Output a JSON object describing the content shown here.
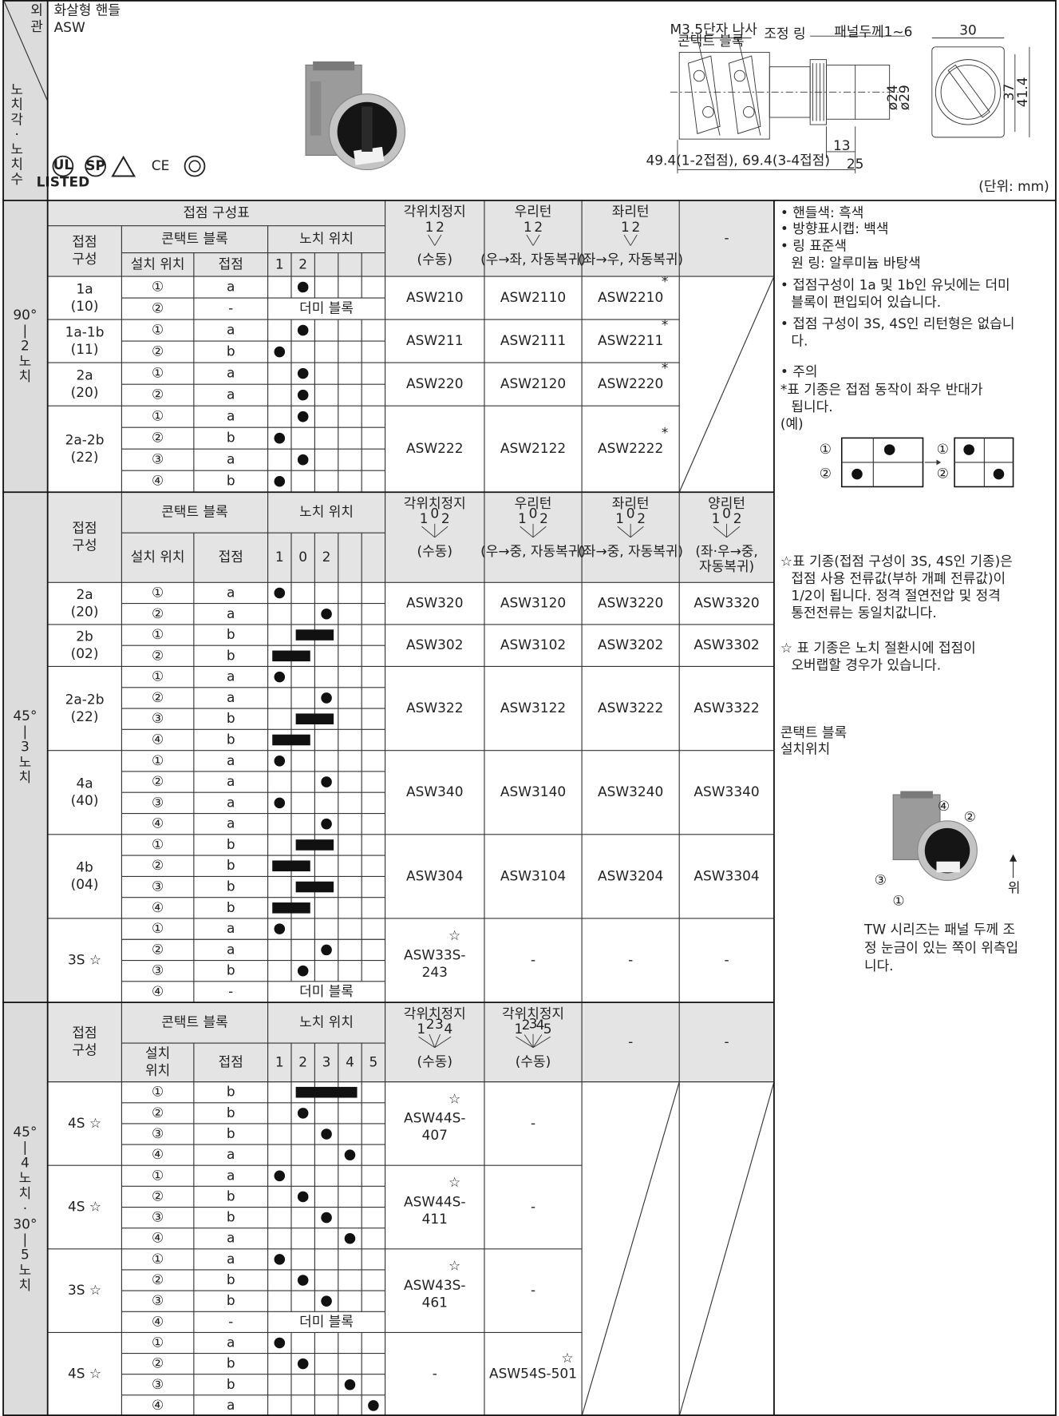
{
  "header": {
    "side_top": [
      "외",
      "관"
    ],
    "side_bottom": [
      "노",
      "치",
      "각",
      "·",
      "노",
      "치",
      "수"
    ],
    "title": "화살형 핸들",
    "model": "ASW",
    "certifications": [
      "UL",
      "LISTED",
      "SP",
      "CE"
    ],
    "drawing_labels": [
      "M3.5단자 나사",
      "콘택트 블록",
      "조정 링",
      "패널두께1~6",
      "30",
      "ø24",
      "ø29",
      "37",
      "41.4",
      "13",
      "25",
      "49.4(1-2접점), 69.4(3-4접점)"
    ],
    "unit": "(단위: mm)"
  },
  "table": {
    "column_heads": {
      "config": [
        "접점",
        "구성"
      ],
      "block": "콘택트 블록",
      "notch": "노치 위치",
      "contact": "접점"
    },
    "sections": [
      {
        "side_label": [
          "90°",
          "|",
          "2",
          "노",
          "치"
        ],
        "title": "접점 구성표",
        "position_head": [
          "설치 위치"
        ],
        "notches": [
          "1",
          "2"
        ],
        "types": [
          {
            "name": "각위치정지",
            "labels": [
              "1",
              "2"
            ],
            "mode": [
              "(수동)"
            ]
          },
          {
            "name": "우리턴",
            "labels": [
              "1",
              "2"
            ],
            "mode": [
              "(우→좌, 자동복귀)"
            ]
          },
          {
            "name": "좌리턴",
            "labels": [
              "1",
              "2"
            ],
            "mode": [
              "(좌→우, 자동복귀)"
            ]
          },
          "-"
        ],
        "groups": [
          {
            "config": [
              "1a",
              "(10)"
            ],
            "rows": [
              {
                "pos": "①",
                "contact": "a",
                "on": [
                  1
                ]
              },
              {
                "pos": "②",
                "contact": "-",
                "dummy": "더미 블록"
              }
            ],
            "models": [
              "ASW210",
              "ASW2110",
              {
                "lines": [
                  "ASW2210"
                ],
                "note": "*"
              },
              null
            ]
          },
          {
            "config": [
              "1a-1b",
              "(11)"
            ],
            "rows": [
              {
                "pos": "①",
                "contact": "a",
                "on": [
                  1
                ]
              },
              {
                "pos": "②",
                "contact": "b",
                "on": [
                  0
                ]
              }
            ],
            "models": [
              "ASW211",
              "ASW2111",
              {
                "lines": [
                  "ASW2211"
                ],
                "note": "*"
              },
              null
            ]
          },
          {
            "config": [
              "2a",
              "(20)"
            ],
            "rows": [
              {
                "pos": "①",
                "contact": "a",
                "on": [
                  1
                ]
              },
              {
                "pos": "②",
                "contact": "a",
                "on": [
                  1
                ]
              }
            ],
            "models": [
              "ASW220",
              "ASW2120",
              {
                "lines": [
                  "ASW2220"
                ],
                "note": "*"
              },
              null
            ]
          },
          {
            "config": [
              "2a-2b",
              "(22)"
            ],
            "rows": [
              {
                "pos": "①",
                "contact": "a",
                "on": [
                  1
                ]
              },
              {
                "pos": "②",
                "contact": "b",
                "on": [
                  0
                ]
              },
              {
                "pos": "③",
                "contact": "a",
                "on": [
                  1
                ]
              },
              {
                "pos": "④",
                "contact": "b",
                "on": [
                  0
                ]
              }
            ],
            "models": [
              "ASW222",
              "ASW2122",
              {
                "lines": [
                  "ASW2222"
                ],
                "note": "*"
              },
              null
            ]
          }
        ]
      },
      {
        "side_label": [
          "45°",
          "|",
          "3",
          "노",
          "치"
        ],
        "position_head": [
          "설치 위치"
        ],
        "notches": [
          "1",
          "0",
          "2"
        ],
        "types": [
          {
            "name": "각위치정지",
            "labels": [
              "1",
              "0",
              "2"
            ],
            "mode": [
              "(수동)"
            ]
          },
          {
            "name": "우리턴",
            "labels": [
              "1",
              "0",
              "2"
            ],
            "mode": [
              "(우→중, 자동복귀)"
            ]
          },
          {
            "name": "좌리턴",
            "labels": [
              "1",
              "0",
              "2"
            ],
            "mode": [
              "(좌→중, 자동복귀)"
            ]
          },
          {
            "name": "양리턴",
            "labels": [
              "1",
              "0",
              "2"
            ],
            "mode": [
              "(좌·우→중,",
              "자동복귀)"
            ]
          }
        ],
        "groups": [
          {
            "config": [
              "2a",
              "(20)"
            ],
            "rows": [
              {
                "pos": "①",
                "contact": "a",
                "on": [
                  0
                ]
              },
              {
                "pos": "②",
                "contact": "a",
                "on": [
                  2
                ]
              }
            ],
            "models": [
              "ASW320",
              "ASW3120",
              "ASW3220",
              "ASW3320"
            ]
          },
          {
            "config": [
              "2b",
              "(02)"
            ],
            "rows": [
              {
                "pos": "①",
                "contact": "b",
                "on": [
                  1,
                  2
                ]
              },
              {
                "pos": "②",
                "contact": "b",
                "on": [
                  0,
                  1
                ]
              }
            ],
            "models": [
              "ASW302",
              "ASW3102",
              "ASW3202",
              "ASW3302"
            ]
          },
          {
            "config": [
              "2a-2b",
              "(22)"
            ],
            "rows": [
              {
                "pos": "①",
                "contact": "a",
                "on": [
                  0
                ]
              },
              {
                "pos": "②",
                "contact": "a",
                "on": [
                  2
                ]
              },
              {
                "pos": "③",
                "contact": "b",
                "on": [
                  1,
                  2
                ]
              },
              {
                "pos": "④",
                "contact": "b",
                "on": [
                  0,
                  1
                ]
              }
            ],
            "models": [
              "ASW322",
              "ASW3122",
              "ASW3222",
              "ASW3322"
            ]
          },
          {
            "config": [
              "4a",
              "(40)"
            ],
            "rows": [
              {
                "pos": "①",
                "contact": "a",
                "on": [
                  0
                ]
              },
              {
                "pos": "②",
                "contact": "a",
                "on": [
                  2
                ]
              },
              {
                "pos": "③",
                "contact": "a",
                "on": [
                  0
                ]
              },
              {
                "pos": "④",
                "contact": "a",
                "on": [
                  2
                ]
              }
            ],
            "models": [
              "ASW340",
              "ASW3140",
              "ASW3240",
              "ASW3340"
            ]
          },
          {
            "config": [
              "4b",
              "(04)"
            ],
            "rows": [
              {
                "pos": "①",
                "contact": "b",
                "on": [
                  1,
                  2
                ]
              },
              {
                "pos": "②",
                "contact": "b",
                "on": [
                  0,
                  1
                ]
              },
              {
                "pos": "③",
                "contact": "b",
                "on": [
                  1,
                  2
                ]
              },
              {
                "pos": "④",
                "contact": "b",
                "on": [
                  0,
                  1
                ]
              }
            ],
            "models": [
              "ASW304",
              "ASW3104",
              "ASW3204",
              "ASW3304"
            ]
          },
          {
            "config": [
              "3S ☆"
            ],
            "rows": [
              {
                "pos": "①",
                "contact": "a",
                "on": [
                  0
                ]
              },
              {
                "pos": "②",
                "contact": "a",
                "on": [
                  2
                ]
              },
              {
                "pos": "③",
                "contact": "b",
                "on": [
                  1
                ]
              },
              {
                "pos": "④",
                "contact": "-",
                "dummy": "더미 블록"
              }
            ],
            "models": [
              {
                "lines": [
                  "ASW33S-",
                  "243"
                ],
                "note": "☆"
              },
              "-",
              "-",
              "-"
            ]
          }
        ]
      },
      {
        "side_label": [
          "45°",
          "|",
          "4",
          "노",
          "치",
          "·",
          "30°",
          "|",
          "5",
          "노",
          "치"
        ],
        "position_head": [
          "설치",
          "위치"
        ],
        "notches": [
          "1",
          "2",
          "3",
          "4",
          "5"
        ],
        "types": [
          {
            "name": "각위치정지",
            "labels": [
              "1",
              "2",
              "3",
              "4"
            ],
            "mode": [
              "(수동)"
            ]
          },
          {
            "name": "각위치정지",
            "labels": [
              "1",
              "2",
              "3",
              "4",
              "5"
            ],
            "mode": [
              "(수동)"
            ]
          },
          "-",
          "-"
        ],
        "groups": [
          {
            "config": [
              "4S ☆"
            ],
            "rows": [
              {
                "pos": "①",
                "contact": "b",
                "on": [
                  1,
                  2,
                  3
                ]
              },
              {
                "pos": "②",
                "contact": "b",
                "on": [
                  1
                ]
              },
              {
                "pos": "③",
                "contact": "b",
                "on": [
                  2
                ]
              },
              {
                "pos": "④",
                "contact": "a",
                "on": [
                  3
                ]
              }
            ],
            "models": [
              {
                "lines": [
                  "ASW44S-",
                  "407"
                ],
                "note": "☆"
              },
              "-",
              null,
              null
            ]
          },
          {
            "config": [
              "4S ☆"
            ],
            "rows": [
              {
                "pos": "①",
                "contact": "a",
                "on": [
                  0
                ]
              },
              {
                "pos": "②",
                "contact": "b",
                "on": [
                  1
                ]
              },
              {
                "pos": "③",
                "contact": "b",
                "on": [
                  2
                ]
              },
              {
                "pos": "④",
                "contact": "a",
                "on": [
                  3
                ]
              }
            ],
            "models": [
              {
                "lines": [
                  "ASW44S-",
                  "411"
                ],
                "note": "☆"
              },
              "-",
              null,
              null
            ]
          },
          {
            "config": [
              "3S ☆"
            ],
            "rows": [
              {
                "pos": "①",
                "contact": "a",
                "on": [
                  0
                ]
              },
              {
                "pos": "②",
                "contact": "b",
                "on": [
                  1
                ]
              },
              {
                "pos": "③",
                "contact": "b",
                "on": [
                  2
                ]
              },
              {
                "pos": "④",
                "contact": "-",
                "dummy": "더미 블록"
              }
            ],
            "models": [
              {
                "lines": [
                  "ASW43S-",
                  "461"
                ],
                "note": "☆"
              },
              "-",
              null,
              null
            ]
          },
          {
            "config": [
              "4S ☆"
            ],
            "rows": [
              {
                "pos": "①",
                "contact": "a",
                "on": [
                  0
                ]
              },
              {
                "pos": "②",
                "contact": "b",
                "on": [
                  1
                ]
              },
              {
                "pos": "③",
                "contact": "b",
                "on": [
                  3
                ]
              },
              {
                "pos": "④",
                "contact": "a",
                "on": [
                  4
                ]
              }
            ],
            "models": [
              "-",
              {
                "lines": [
                  "ASW54S-501"
                ],
                "note": "☆"
              },
              null,
              null
            ]
          }
        ]
      }
    ]
  },
  "notes": {
    "paragraphs": [
      [
        "• 핸들색: 흑색"
      ],
      [
        "• 방향표시캡: 백색"
      ],
      [
        "• 링 표준색",
        "원 링: 알루미늄 바탕색"
      ],
      [
        "• 접점구성이 1a 및 1b인 유닛에는 더미",
        "블록이 편입되어 있습니다."
      ],
      [
        "• 접점 구성이 3S, 4S인 리턴형은 없습니",
        "다."
      ],
      [
        "• 주의"
      ],
      [
        "*표 기종은 접점 동작이 좌우 반대가",
        "됩니다."
      ],
      [
        "(예)"
      ],
      [
        "☆표 기종(접점 구성이 3S, 4S인 기종)은",
        "접점 사용 전류값(부하 개폐 전류값)이",
        "1/2이 됩니다. 정격 절연전압 및 정격",
        "통전전류는 동일치값니다."
      ],
      [
        "☆ 표 기종은 노치 절환시에 접점이",
        "오버랩할 경우가 있습니다."
      ],
      [
        "콘택트 블록"
      ],
      [
        "설치위치"
      ]
    ],
    "example_labels": [
      "①",
      "②"
    ],
    "photo_labels": [
      "④",
      "②",
      "③",
      "①",
      "위"
    ],
    "photo_caption": [
      "TW 시리즈는 패널 두께 조",
      "정 눈금이 있는 쪽이 위측입",
      "니다."
    ]
  }
}
